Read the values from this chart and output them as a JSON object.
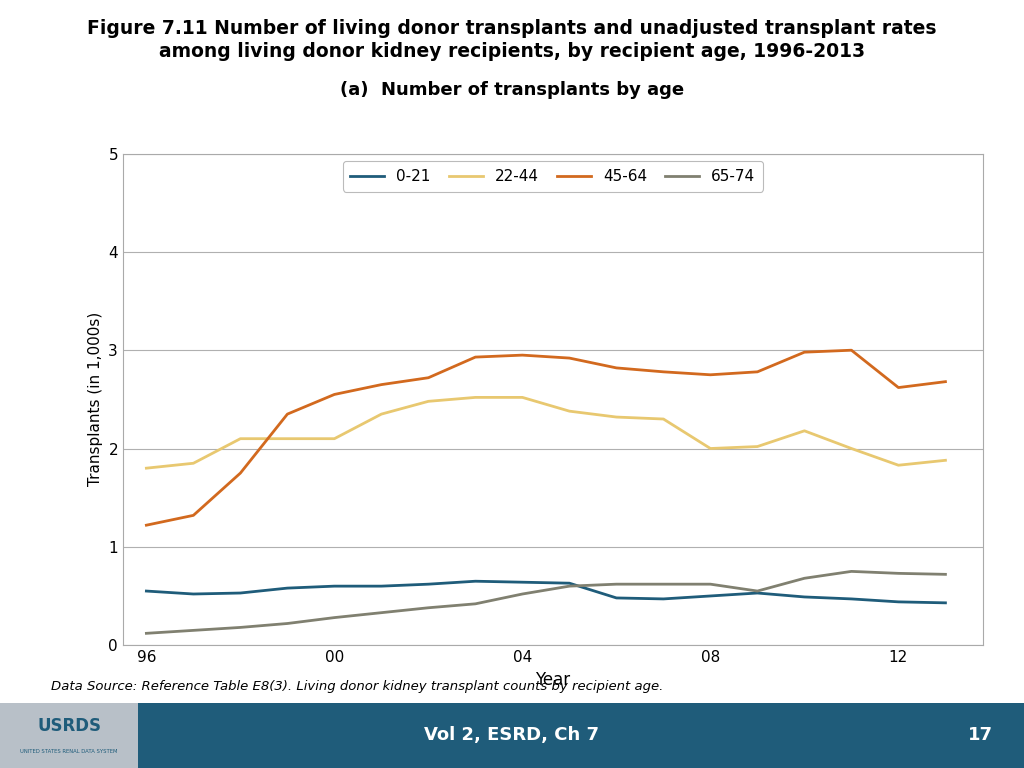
{
  "title_line1": "Figure 7.11 Number of living donor transplants and unadjusted transplant rates",
  "title_line2": "among living donor kidney recipients, by recipient age, 1996-2013",
  "subtitle": "(a)  Number of transplants by age",
  "xlabel": "Year",
  "ylabel": "Transplants (in 1,000s)",
  "footnote": "Data Source: Reference Table E8(3). Living donor kidney transplant counts by recipient age.",
  "footer_text": "Vol 2, ESRD, Ch 7",
  "footer_page": "17",
  "footer_color": "#1F5C7A",
  "years": [
    1996,
    1997,
    1998,
    1999,
    2000,
    2001,
    2002,
    2003,
    2004,
    2005,
    2006,
    2007,
    2008,
    2009,
    2010,
    2011,
    2012,
    2013
  ],
  "xtick_labels": [
    "96",
    "00",
    "04",
    "08",
    "12"
  ],
  "xtick_positions": [
    1996,
    2000,
    2004,
    2008,
    2012
  ],
  "series_order": [
    "0-21",
    "22-44",
    "45-64",
    "65-74"
  ],
  "series": {
    "0-21": {
      "color": "#1F5C7A",
      "values": [
        0.55,
        0.52,
        0.53,
        0.58,
        0.6,
        0.6,
        0.62,
        0.65,
        0.64,
        0.63,
        0.48,
        0.47,
        0.5,
        0.53,
        0.49,
        0.47,
        0.44,
        0.43
      ]
    },
    "22-44": {
      "color": "#E8C870",
      "values": [
        1.8,
        1.85,
        2.1,
        2.1,
        2.1,
        2.35,
        2.48,
        2.52,
        2.52,
        2.38,
        2.32,
        2.3,
        2.0,
        2.02,
        2.18,
        2.0,
        1.83,
        1.88
      ]
    },
    "45-64": {
      "color": "#D2691E",
      "values": [
        1.22,
        1.32,
        1.75,
        2.35,
        2.55,
        2.65,
        2.72,
        2.93,
        2.95,
        2.92,
        2.82,
        2.78,
        2.75,
        2.78,
        2.98,
        3.0,
        2.62,
        2.68
      ]
    },
    "65-74": {
      "color": "#808070",
      "values": [
        0.12,
        0.15,
        0.18,
        0.22,
        0.28,
        0.33,
        0.38,
        0.42,
        0.52,
        0.6,
        0.62,
        0.62,
        0.62,
        0.55,
        0.68,
        0.75,
        0.73,
        0.72
      ]
    }
  },
  "ylim": [
    0,
    5
  ],
  "yticks": [
    0,
    1,
    2,
    3,
    4,
    5
  ],
  "background_color": "#ffffff",
  "plot_bg_color": "#ffffff",
  "grid_color": "#b0b0b0",
  "border_color": "#aaaaaa"
}
